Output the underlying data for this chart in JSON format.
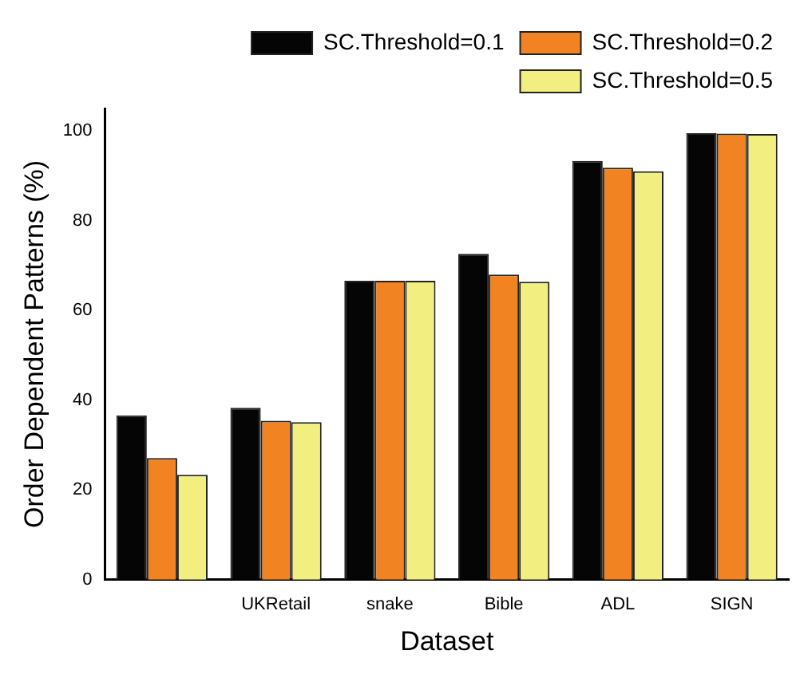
{
  "chart_data": {
    "type": "bar",
    "xlabel": "Dataset",
    "ylabel": "Order Dependent Patterns (%)",
    "categories": [
      null,
      "UKRetail",
      "snake",
      "Bible",
      "ADL",
      "SIGN"
    ],
    "series": [
      {
        "name": "SC.Threshold=0.1",
        "color": "#050505",
        "values": [
          36.6,
          38.3,
          66.6,
          72.6,
          93.3,
          99.5
        ]
      },
      {
        "name": "SC.Threshold=0.2",
        "color": "#f28322",
        "values": [
          27.1,
          35.4,
          66.6,
          68.0,
          91.8,
          99.4
        ]
      },
      {
        "name": "SC.Threshold=0.5",
        "color": "#f2ee80",
        "values": [
          23.4,
          35.1,
          66.6,
          66.4,
          91.0,
          99.3
        ]
      }
    ],
    "ylim": [
      0,
      105
    ],
    "yticks": [
      0,
      20,
      40,
      60,
      80,
      100
    ],
    "grid": false,
    "legend": "top right"
  }
}
